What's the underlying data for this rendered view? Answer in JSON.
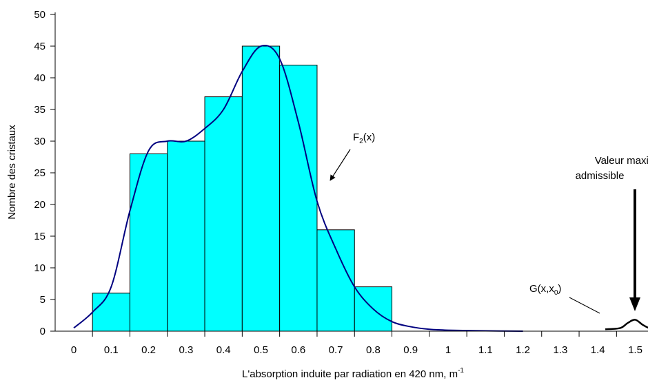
{
  "chart_data": {
    "type": "bar",
    "categories": [
      "0.1",
      "0.2",
      "0.3",
      "0.4",
      "0.5",
      "0.6",
      "0.7",
      "0.8"
    ],
    "bin_edges": [
      0.05,
      0.15,
      0.25,
      0.35,
      0.45,
      0.55,
      0.65,
      0.75,
      0.85
    ],
    "values": [
      6,
      28,
      30,
      37,
      45,
      42,
      16,
      7
    ],
    "xlabel": "L'absorption induite par radiation en 420 nm, m",
    "xlabel_superscript": "-1",
    "ylabel": "Nombre des cristaux",
    "xlim": [
      0,
      1.5
    ],
    "ylim": [
      0,
      50
    ],
    "x_ticks": [
      "0",
      "0.1",
      "0.2",
      "0.3",
      "0.4",
      "0.5",
      "0.6",
      "0.7",
      "0.8",
      "0.9",
      "1",
      "1.1",
      "1.2",
      "1.3",
      "1.4",
      "1.5"
    ],
    "y_ticks": [
      "0",
      "5",
      "10",
      "15",
      "20",
      "25",
      "30",
      "35",
      "40",
      "45",
      "50"
    ],
    "grid": false,
    "bar_color": "#00ffff",
    "curve_color": "#000080",
    "curves": [
      {
        "name": "F2(x)",
        "x": [
          0,
          0.05,
          0.1,
          0.15,
          0.2,
          0.25,
          0.3,
          0.35,
          0.4,
          0.45,
          0.5,
          0.55,
          0.6,
          0.65,
          0.7,
          0.75,
          0.8,
          0.85,
          0.9,
          0.95,
          1.0,
          1.1,
          1.2
        ],
        "y": [
          0.5,
          3,
          7,
          19,
          28.5,
          30,
          30,
          32,
          35,
          41,
          45,
          43,
          33,
          20.5,
          13,
          7,
          3.5,
          1.5,
          0.7,
          0.3,
          0.15,
          0.05,
          0
        ]
      },
      {
        "name": "G(x,x0)",
        "x": [
          1.42,
          1.46,
          1.48,
          1.5,
          1.52,
          1.54,
          1.55
        ],
        "y": [
          0.3,
          0.5,
          1.3,
          1.8,
          1.0,
          0.4,
          0.3
        ]
      }
    ],
    "annotations": {
      "f2_label": "F",
      "f2_sub": "2",
      "f2_suffix": "(x)",
      "g_label": "G(x,x",
      "g_sub": "0",
      "g_suffix": ")",
      "max_line1": "Valeur maximale",
      "max_line2": "admissible"
    }
  }
}
